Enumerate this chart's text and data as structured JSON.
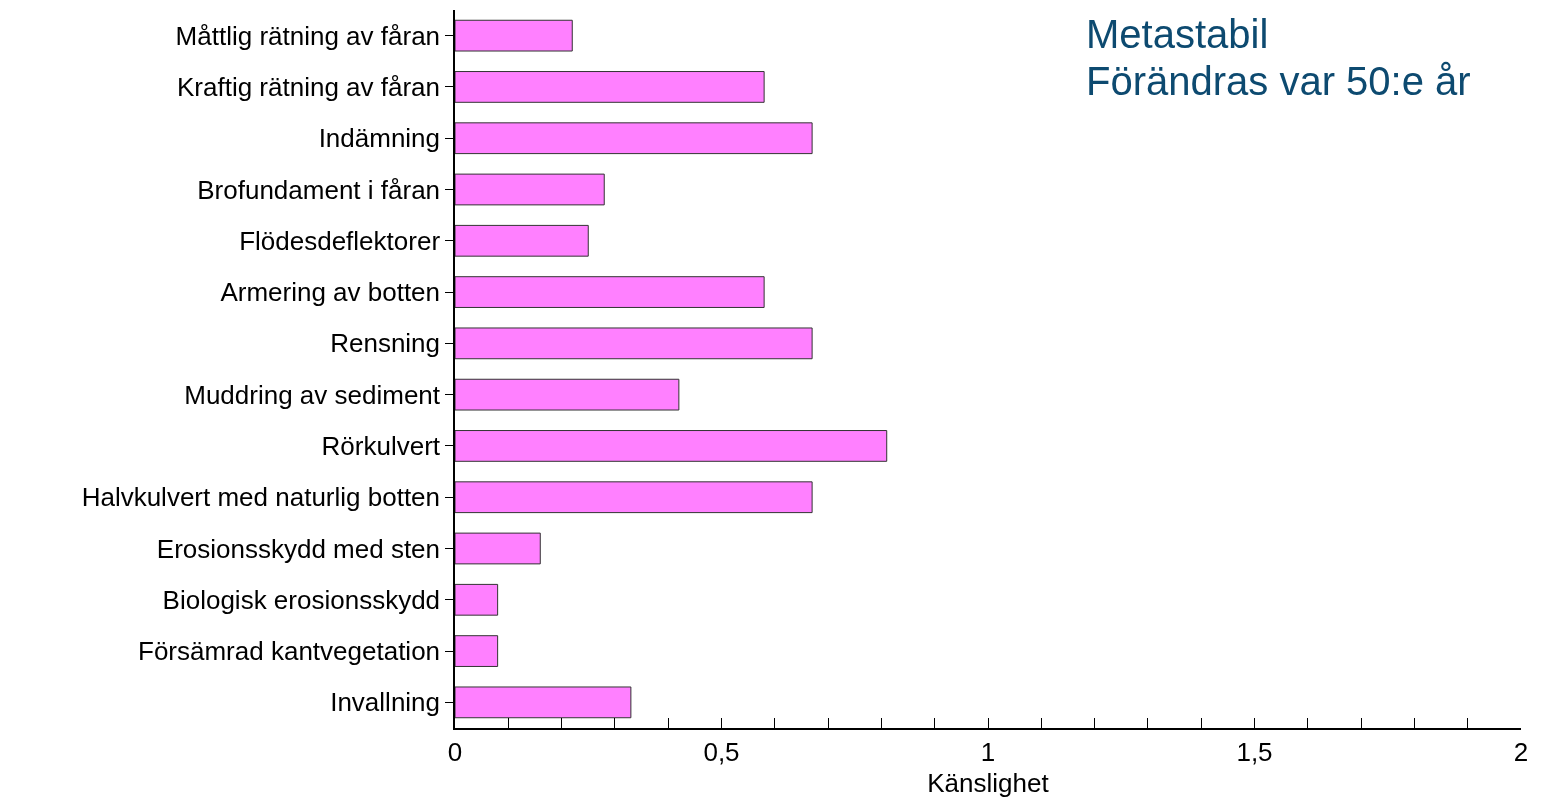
{
  "chart_data": {
    "type": "bar",
    "orientation": "horizontal",
    "xlabel": "Känslighet",
    "categories": [
      "Måttlig rätning av fåran",
      "Kraftig rätning av fåran",
      "Indämning",
      "Brofundament i fåran",
      "Flödesdeflektorer",
      "Armering av botten",
      "Rensning",
      "Muddring av sediment",
      "Rörkulvert",
      "Halvkulvert med naturlig botten",
      "Erosionsskydd med sten",
      "Biologisk erosionsskydd",
      "Försämrad kantvegetation",
      "Invallning"
    ],
    "values": [
      0.22,
      0.58,
      0.67,
      0.28,
      0.25,
      0.58,
      0.67,
      0.42,
      0.81,
      0.67,
      0.16,
      0.08,
      0.08,
      0.33
    ],
    "color": "#ff80ff",
    "xlim": [
      0,
      2
    ],
    "xticks": [
      0,
      {
        "value": 0.1,
        "label": null
      },
      {
        "value": 0.2,
        "label": null
      },
      {
        "value": 0.3,
        "label": null
      },
      {
        "value": 0.4,
        "label": null
      },
      {
        "value": 0.5,
        "label": "0,5"
      },
      {
        "value": 0.6,
        "label": null
      },
      {
        "value": 0.7,
        "label": null
      },
      {
        "value": 0.8,
        "label": null
      },
      {
        "value": 0.9,
        "label": null
      },
      1,
      {
        "value": 1.1,
        "label": null
      },
      {
        "value": 1.2,
        "label": null
      },
      {
        "value": 1.3,
        "label": null
      },
      {
        "value": 1.4,
        "label": null
      },
      {
        "value": 1.5,
        "label": "1,5"
      },
      {
        "value": 1.6,
        "label": null
      },
      {
        "value": 1.7,
        "label": null
      },
      {
        "value": 1.8,
        "label": null
      },
      {
        "value": 1.9,
        "label": null
      },
      2
    ],
    "annotations": [
      "Metastabil",
      "Förändras var 50:e år"
    ]
  }
}
